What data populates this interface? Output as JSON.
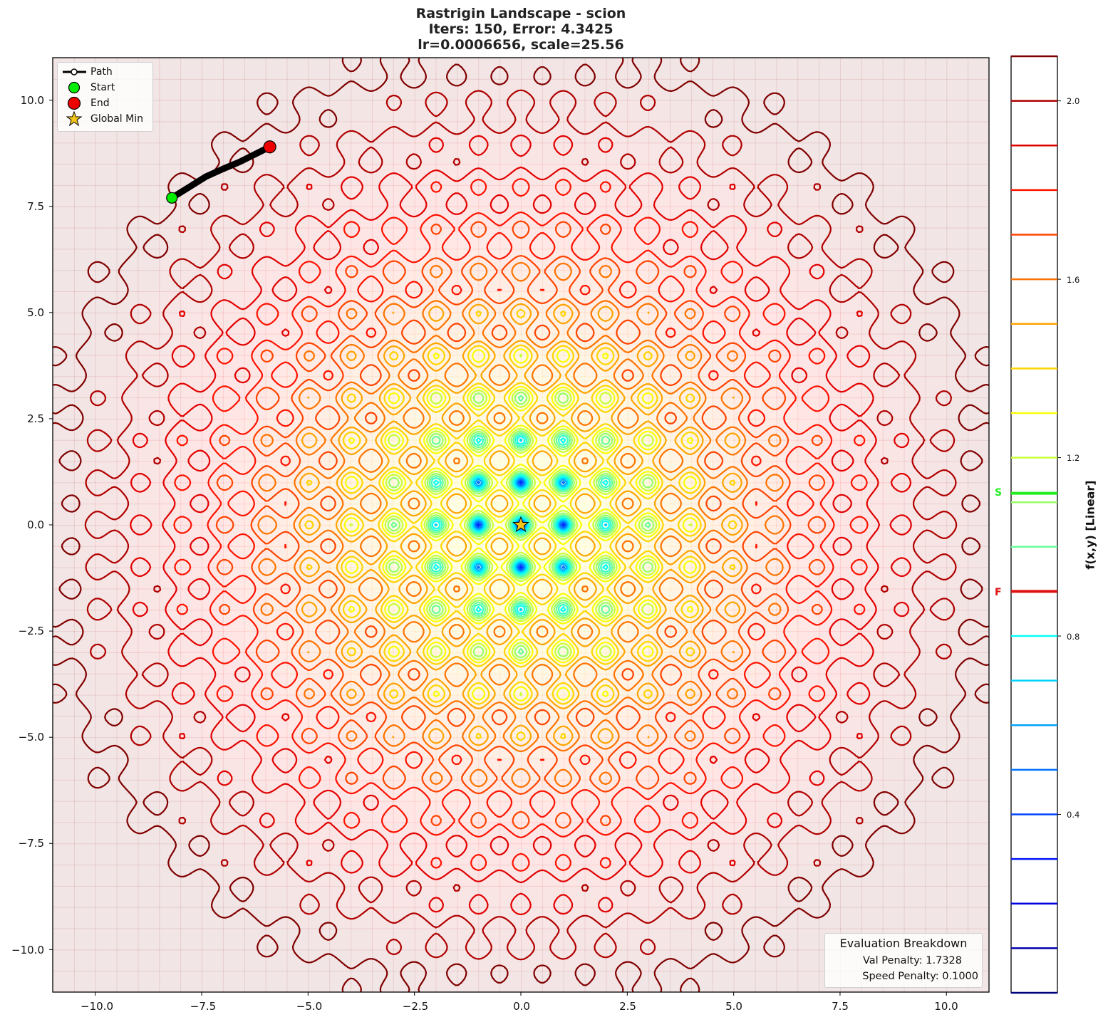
{
  "chart_data": {
    "type": "contour",
    "title": "Rastrigin Landscape - scion",
    "subtitle_lines": [
      "Iters: 150, Error: 4.3425",
      "lr=0.0006656, scale=25.56"
    ],
    "xlabel": "",
    "ylabel": "",
    "xlim": [
      -11,
      11
    ],
    "ylim": [
      -11,
      11
    ],
    "x_ticks": [
      "−10.0",
      "−7.5",
      "−5.0",
      "−2.5",
      "0.0",
      "2.5",
      "5.0",
      "7.5",
      "10.0"
    ],
    "x_tick_values": [
      -10,
      -7.5,
      -5,
      -2.5,
      0,
      2.5,
      5,
      7.5,
      10
    ],
    "y_ticks": [
      "10.0",
      "7.5",
      "5.0",
      "2.5",
      "0.0",
      "−2.5",
      "−5.0",
      "−7.5",
      "−10.0"
    ],
    "y_tick_values": [
      10,
      7.5,
      5,
      2.5,
      0,
      -2.5,
      -5,
      -7.5,
      -10
    ],
    "grid": false,
    "colormap": "jet",
    "colorbar": {
      "label": "f(x,y) [Linear]",
      "ticks": [
        "2.0",
        "1.6",
        "1.2",
        "0.8",
        "0.4"
      ],
      "tick_values": [
        2.0,
        1.6,
        1.2,
        0.8,
        0.4
      ],
      "range": [
        0.0,
        2.1
      ],
      "levels": [
        0.1,
        0.2,
        0.3,
        0.4,
        0.5,
        0.6,
        0.7,
        0.8,
        0.9,
        1.0,
        1.1,
        1.2,
        1.3,
        1.4,
        1.5,
        1.6,
        1.7,
        1.8,
        1.9,
        2.0,
        2.1
      ],
      "markers": [
        {
          "label": "S",
          "value": 1.12,
          "color": "#22ee22"
        },
        {
          "label": "F",
          "value": 0.9,
          "color": "#dd1111"
        }
      ]
    },
    "path": {
      "start": [
        -8.2,
        7.7
      ],
      "end": [
        -5.9,
        8.9
      ],
      "points": [
        [
          -8.2,
          7.7
        ],
        [
          -7.8,
          7.95
        ],
        [
          -7.4,
          8.2
        ],
        [
          -7.0,
          8.38
        ],
        [
          -6.6,
          8.55
        ],
        [
          -6.2,
          8.75
        ],
        [
          -5.9,
          8.9
        ]
      ]
    },
    "global_min": [
      0,
      0
    ],
    "legend": {
      "position": "upper left",
      "entries": [
        "Path",
        "Start",
        "End",
        "Global Min"
      ]
    },
    "annotation_box": {
      "position": "lower right",
      "title": "Evaluation Breakdown",
      "lines": [
        "Val Penalty: 1.7328",
        "Speed Penalty: 0.1000"
      ]
    }
  },
  "title": {
    "line1": "Rastrigin Landscape - scion",
    "line2": "Iters: 150, Error: 4.3425",
    "line3": "lr=0.0006656, scale=25.56"
  },
  "legend": {
    "path": "Path",
    "start": "Start",
    "end": "End",
    "global_min": "Global Min"
  },
  "eval": {
    "title": "Evaluation Breakdown",
    "val_penalty": "Val Penalty: 1.7328",
    "speed_penalty": "Speed Penalty: 0.1000"
  },
  "axes": {
    "x_ticks": [
      "−10.0",
      "−7.5",
      "−5.0",
      "−2.5",
      "0.0",
      "2.5",
      "5.0",
      "7.5",
      "10.0"
    ],
    "y_ticks": [
      "10.0",
      "7.5",
      "5.0",
      "2.5",
      "0.0",
      "−2.5",
      "−5.0",
      "−7.5",
      "−10.0"
    ]
  },
  "colorbar": {
    "label": "f(x,y) [Linear]",
    "ticks": [
      "2.0",
      "1.6",
      "1.2",
      "0.8",
      "0.4"
    ],
    "marker_s": "S",
    "marker_f": "F"
  },
  "colors": {
    "path": "#000000",
    "start": "#00ee00",
    "end": "#ee0000",
    "star": "#f5c518",
    "marker_s": "#22ee22",
    "marker_f": "#dd1111"
  }
}
